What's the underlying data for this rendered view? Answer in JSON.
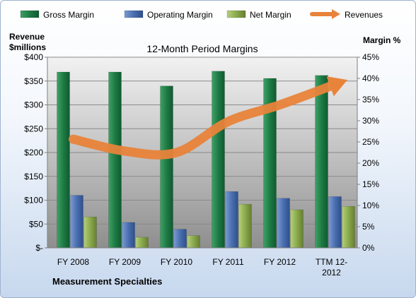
{
  "chart_data": {
    "type": "bar",
    "title": "12-Month Period Margins",
    "left_axis_label": "Revenue\n$millions",
    "right_axis_label": "Margin %",
    "footer": "Measurement Specialties",
    "categories": [
      "FY 2008",
      "FY 2009",
      "FY 2010",
      "FY 2011",
      "FY 2012",
      "TTM 12-\n2012"
    ],
    "left_ticks": [
      "$-",
      "$50",
      "$100",
      "$150",
      "$200",
      "$250",
      "$300",
      "$350",
      "$400"
    ],
    "right_ticks": [
      "0%",
      "5%",
      "10%",
      "15%",
      "20%",
      "25%",
      "30%",
      "35%",
      "40%",
      "45%"
    ],
    "ylim_left": [
      0,
      400
    ],
    "ylim_right": [
      0,
      45
    ],
    "grid": true,
    "legend_position": "top",
    "series": [
      {
        "name": "Gross Margin",
        "type": "bar",
        "axis": "right",
        "color": "#1e7b45",
        "values": [
          41.5,
          41.5,
          38.2,
          41.7,
          40.0,
          40.7
        ]
      },
      {
        "name": "Operating Margin",
        "type": "bar",
        "axis": "right",
        "color": "#4a6fb0",
        "values": [
          12.4,
          6.0,
          4.4,
          13.3,
          11.7,
          12.1
        ]
      },
      {
        "name": "Net Margin",
        "type": "bar",
        "axis": "right",
        "color": "#8aaa4c",
        "values": [
          7.3,
          2.5,
          2.9,
          10.3,
          9.0,
          9.8
        ]
      },
      {
        "name": "Revenues",
        "type": "line",
        "axis": "left",
        "color": "#e8833a",
        "values": [
          228,
          203,
          200,
          265,
          300,
          340
        ]
      }
    ]
  }
}
